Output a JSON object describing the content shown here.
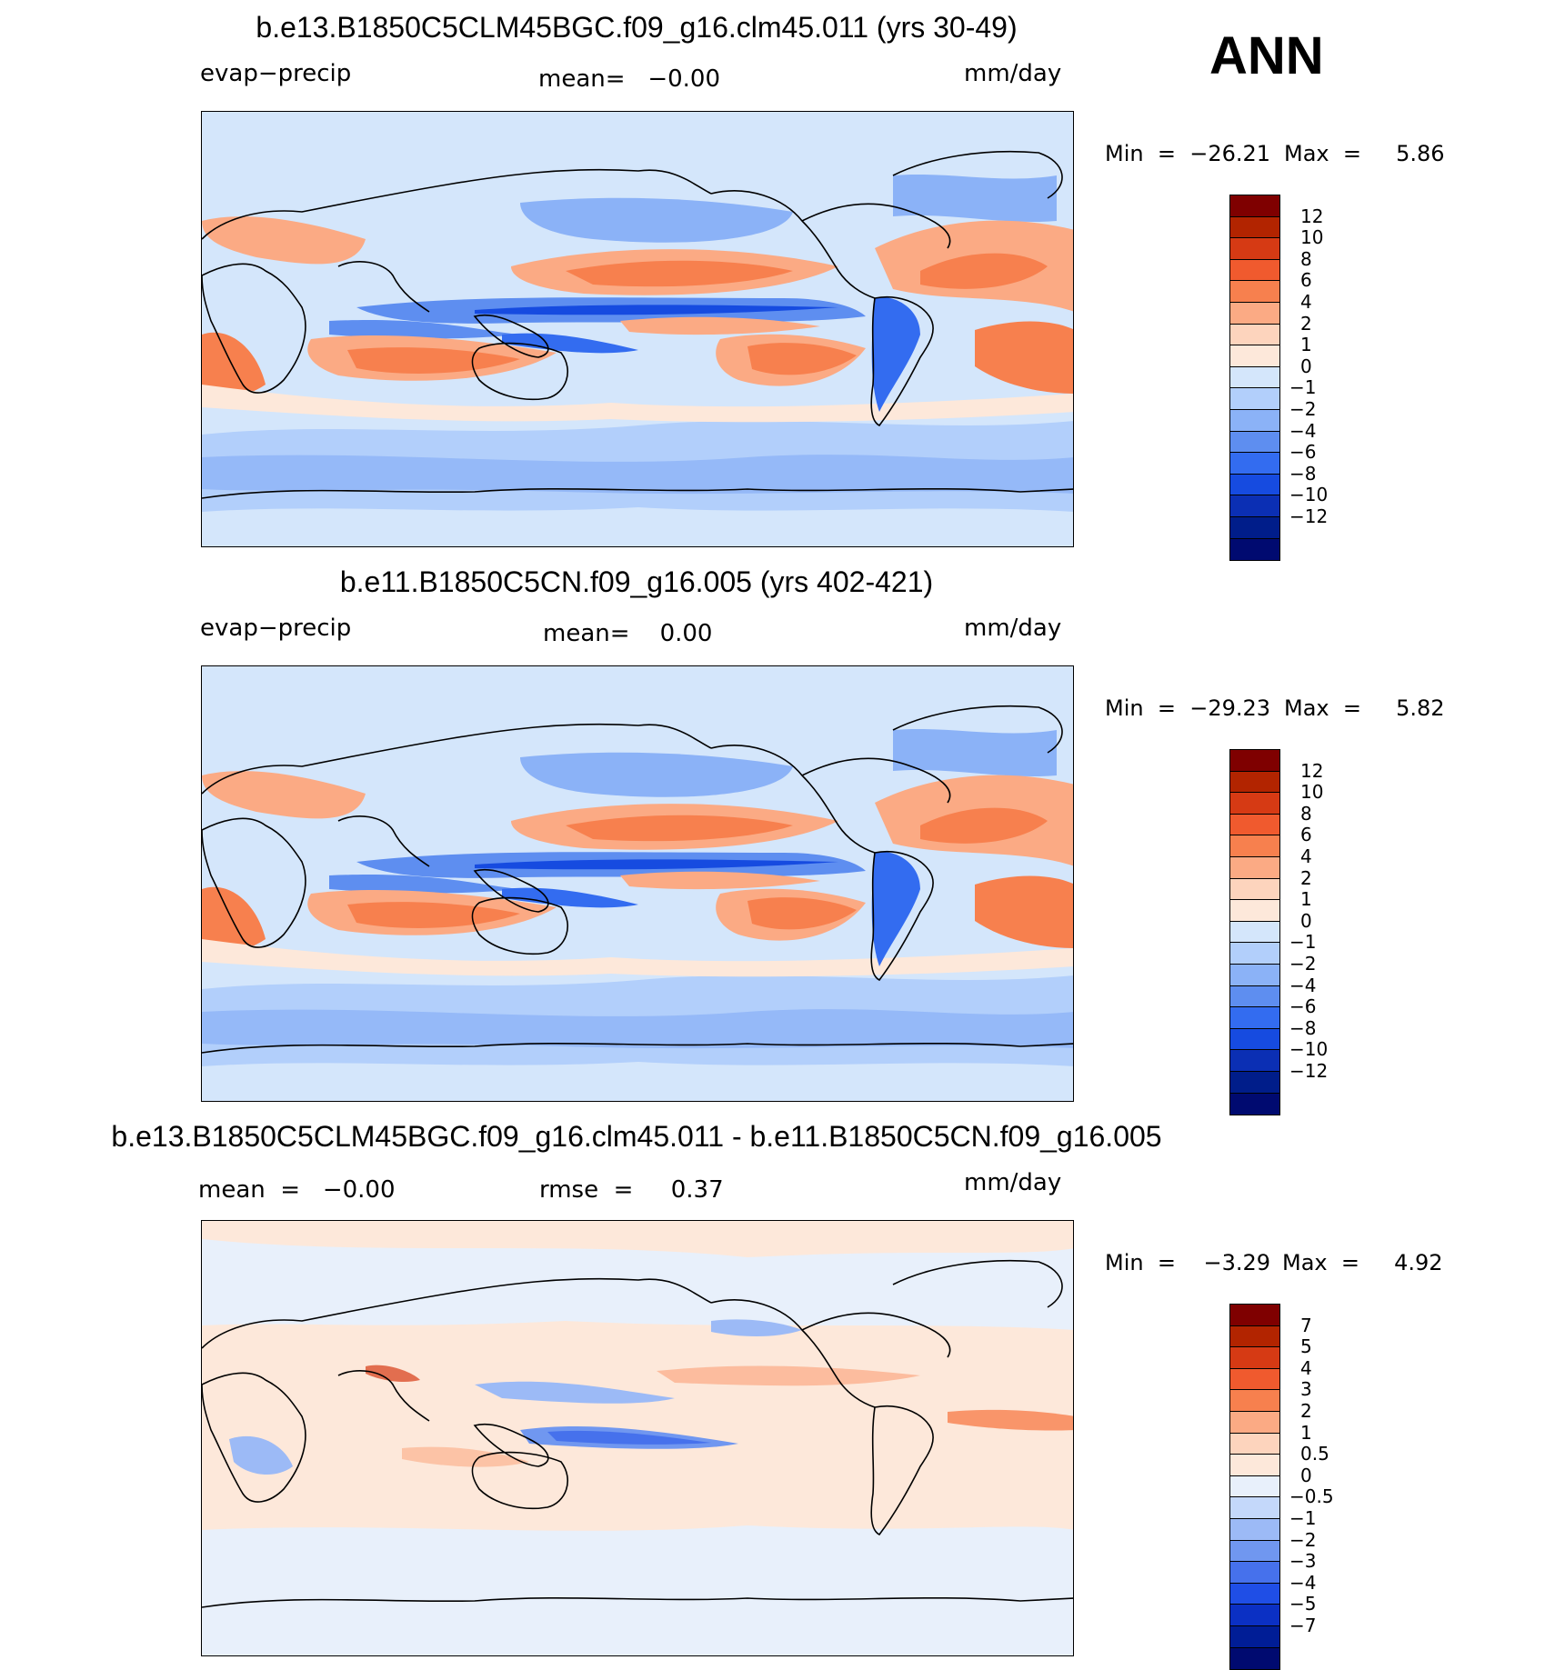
{
  "season": "ANN",
  "panels": [
    {
      "title": "b.e13.B1850C5CLM45BGC.f09_g16.clm45.011 (yrs 30-49)",
      "left_label": "evap−precip",
      "center_label": "mean=   −0.00",
      "units": "mm/day",
      "min_text": "Min  =  −26.21",
      "max_text": "Max  =     5.86",
      "colorbar": {
        "colors": [
          "#7f0000",
          "#b22400",
          "#d63a14",
          "#f05a2e",
          "#f7804e",
          "#fbaa84",
          "#fdd4bd",
          "#fde8da",
          "#d4e6fb",
          "#b2cffb",
          "#8bb2f7",
          "#5e8ef0",
          "#336cf0",
          "#164be0",
          "#0b2fb4",
          "#001d8a",
          "#000a70"
        ],
        "labels": [
          "12",
          "10",
          "8",
          "6",
          "4",
          "2",
          "1",
          "0",
          "−1",
          "−2",
          "−4",
          "−6",
          "−8",
          "−10",
          "−12"
        ]
      }
    },
    {
      "title": "b.e11.B1850C5CN.f09_g16.005 (yrs 402-421)",
      "left_label": "evap−precip",
      "center_label": "mean=    0.00",
      "units": "mm/day",
      "min_text": "Min  =  −29.23",
      "max_text": "Max  =     5.82",
      "colorbar": {
        "colors": [
          "#7f0000",
          "#b22400",
          "#d63a14",
          "#f05a2e",
          "#f7804e",
          "#fbaa84",
          "#fdd4bd",
          "#fde8da",
          "#d4e6fb",
          "#b2cffb",
          "#8bb2f7",
          "#5e8ef0",
          "#336cf0",
          "#164be0",
          "#0b2fb4",
          "#001d8a",
          "#000a70"
        ],
        "labels": [
          "12",
          "10",
          "8",
          "6",
          "4",
          "2",
          "1",
          "0",
          "−1",
          "−2",
          "−4",
          "−6",
          "−8",
          "−10",
          "−12"
        ]
      }
    },
    {
      "title": "b.e13.B1850C5CLM45BGC.f09_g16.clm45.011 - b.e11.B1850C5CN.f09_g16.005",
      "left_label": "mean  =   −0.00",
      "center_label": "rmse  =     0.37",
      "units": "mm/day",
      "min_text": "Min  =    −3.29",
      "max_text": "Max  =     4.92",
      "colorbar": {
        "colors": [
          "#7f0000",
          "#b22400",
          "#d63a14",
          "#f05a2e",
          "#f7804e",
          "#fbaa84",
          "#fdd4bd",
          "#fde8da",
          "#e8f0fb",
          "#c4d8fa",
          "#9cbaf6",
          "#7097f0",
          "#4671ec",
          "#1f4ee6",
          "#0b30c4",
          "#001d96",
          "#000a70"
        ],
        "labels": [
          "7",
          "5",
          "4",
          "3",
          "2",
          "1",
          "0.5",
          "0",
          "−0.5",
          "−1",
          "−2",
          "−3",
          "−4",
          "−5",
          "−7"
        ]
      }
    }
  ]
}
